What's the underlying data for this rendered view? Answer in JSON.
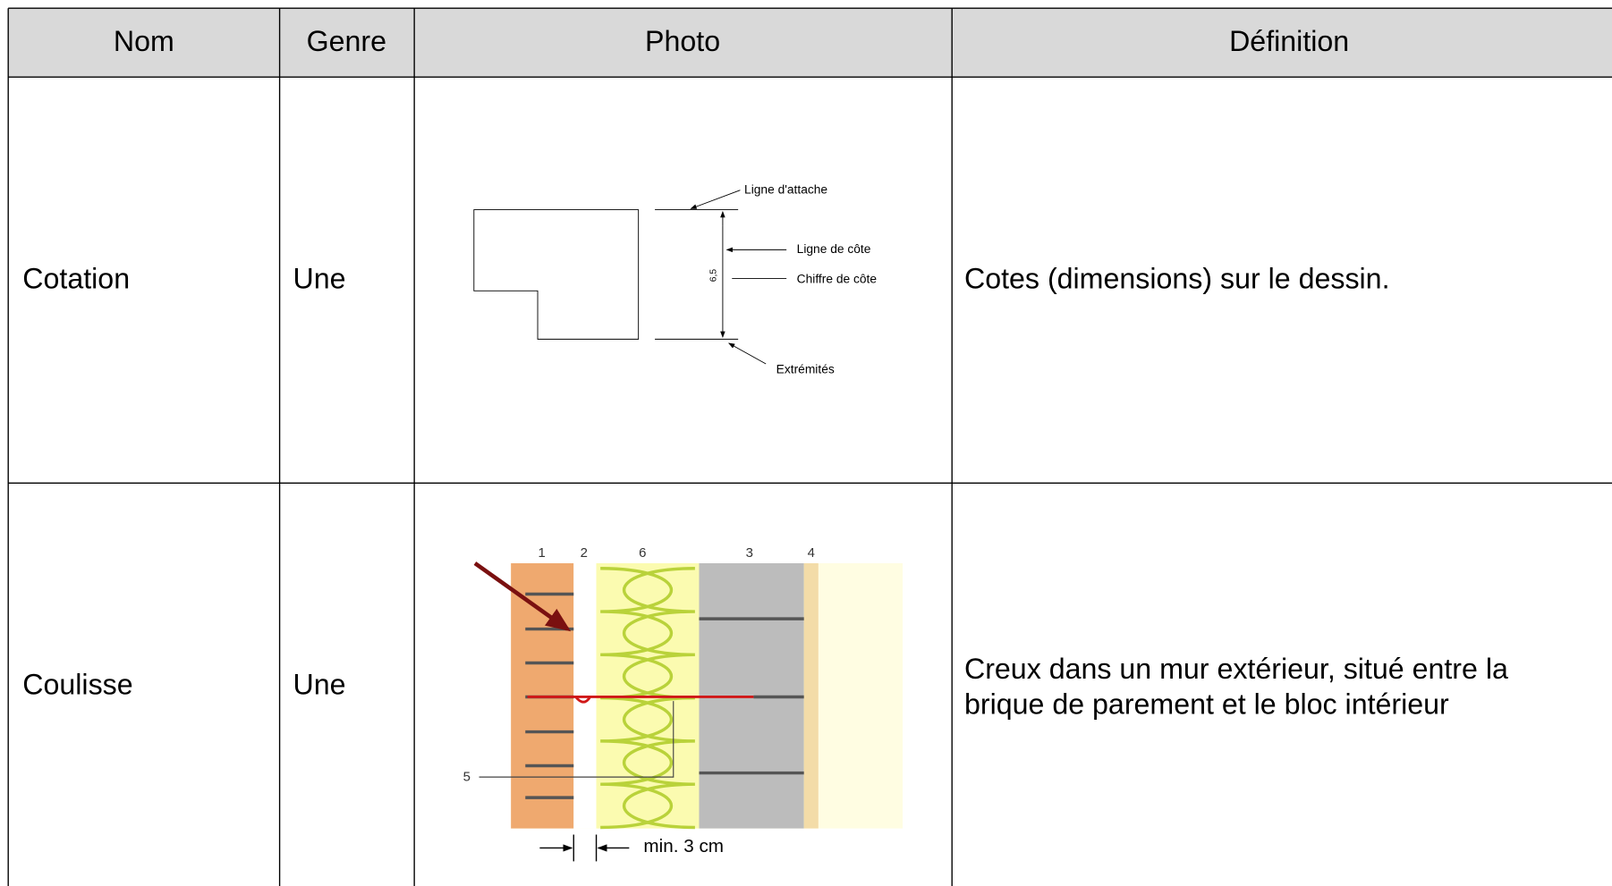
{
  "table": {
    "header": [
      "Nom",
      "Genre",
      "Photo",
      "Définition"
    ],
    "rows": [
      {
        "name": "Cotation",
        "genre": "Une",
        "photo": {
          "labels": [
            "Ligne d'attache",
            "Ligne de côte",
            "Chiffre de côte",
            "Extrémités",
            "6,5"
          ]
        },
        "definition": "Cotes (dimensions) sur le dessin."
      },
      {
        "name": "Coulisse",
        "genre": "Une",
        "photo": {
          "labels": [
            "1",
            "2",
            "6",
            "3",
            "4",
            "5",
            "min. 3 cm"
          ]
        },
        "definition": [
          "Creux dans un mur extérieur, situé entre la",
          "brique de parement et le bloc intérieur"
        ]
      }
    ]
  }
}
